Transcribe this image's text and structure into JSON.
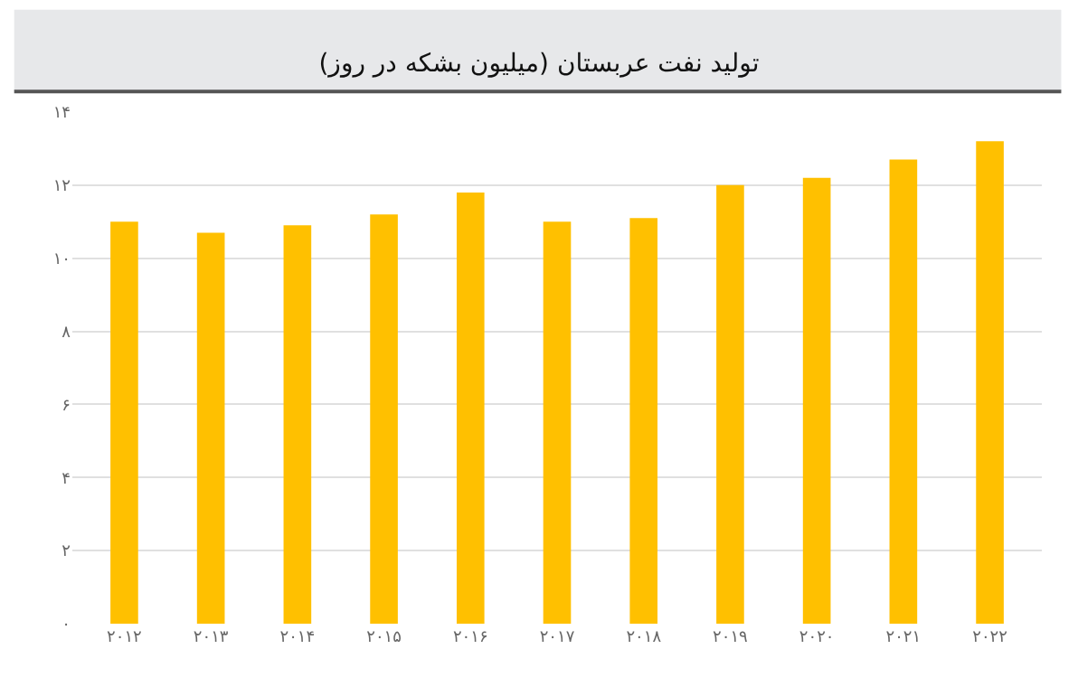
{
  "chart_data": {
    "type": "bar",
    "title": "تولید نفت عربستان (میلیون بشکه در روز)",
    "categories": [
      "۲۰۱۲",
      "۲۰۱۳",
      "۲۰۱۴",
      "۲۰۱۵",
      "۲۰۱۶",
      "۲۰۱۷",
      "۲۰۱۸",
      "۲۰۱۹",
      "۲۰۲۰",
      "۲۰۲۱",
      "۲۰۲۲"
    ],
    "values": [
      11.0,
      10.7,
      10.9,
      11.2,
      11.8,
      11.0,
      11.1,
      12.0,
      12.2,
      12.7,
      13.2
    ],
    "color": "#ffc000",
    "ylim": [
      0,
      14
    ],
    "yticks": [
      {
        "value": 0,
        "label": "۰"
      },
      {
        "value": 2,
        "label": "۲"
      },
      {
        "value": 4,
        "label": "۴"
      },
      {
        "value": 6,
        "label": "۶"
      },
      {
        "value": 8,
        "label": "۸"
      },
      {
        "value": 10,
        "label": "۱۰"
      },
      {
        "value": 12,
        "label": "۱۲"
      },
      {
        "value": 14,
        "label": "۱۴"
      }
    ],
    "grid": "y"
  }
}
